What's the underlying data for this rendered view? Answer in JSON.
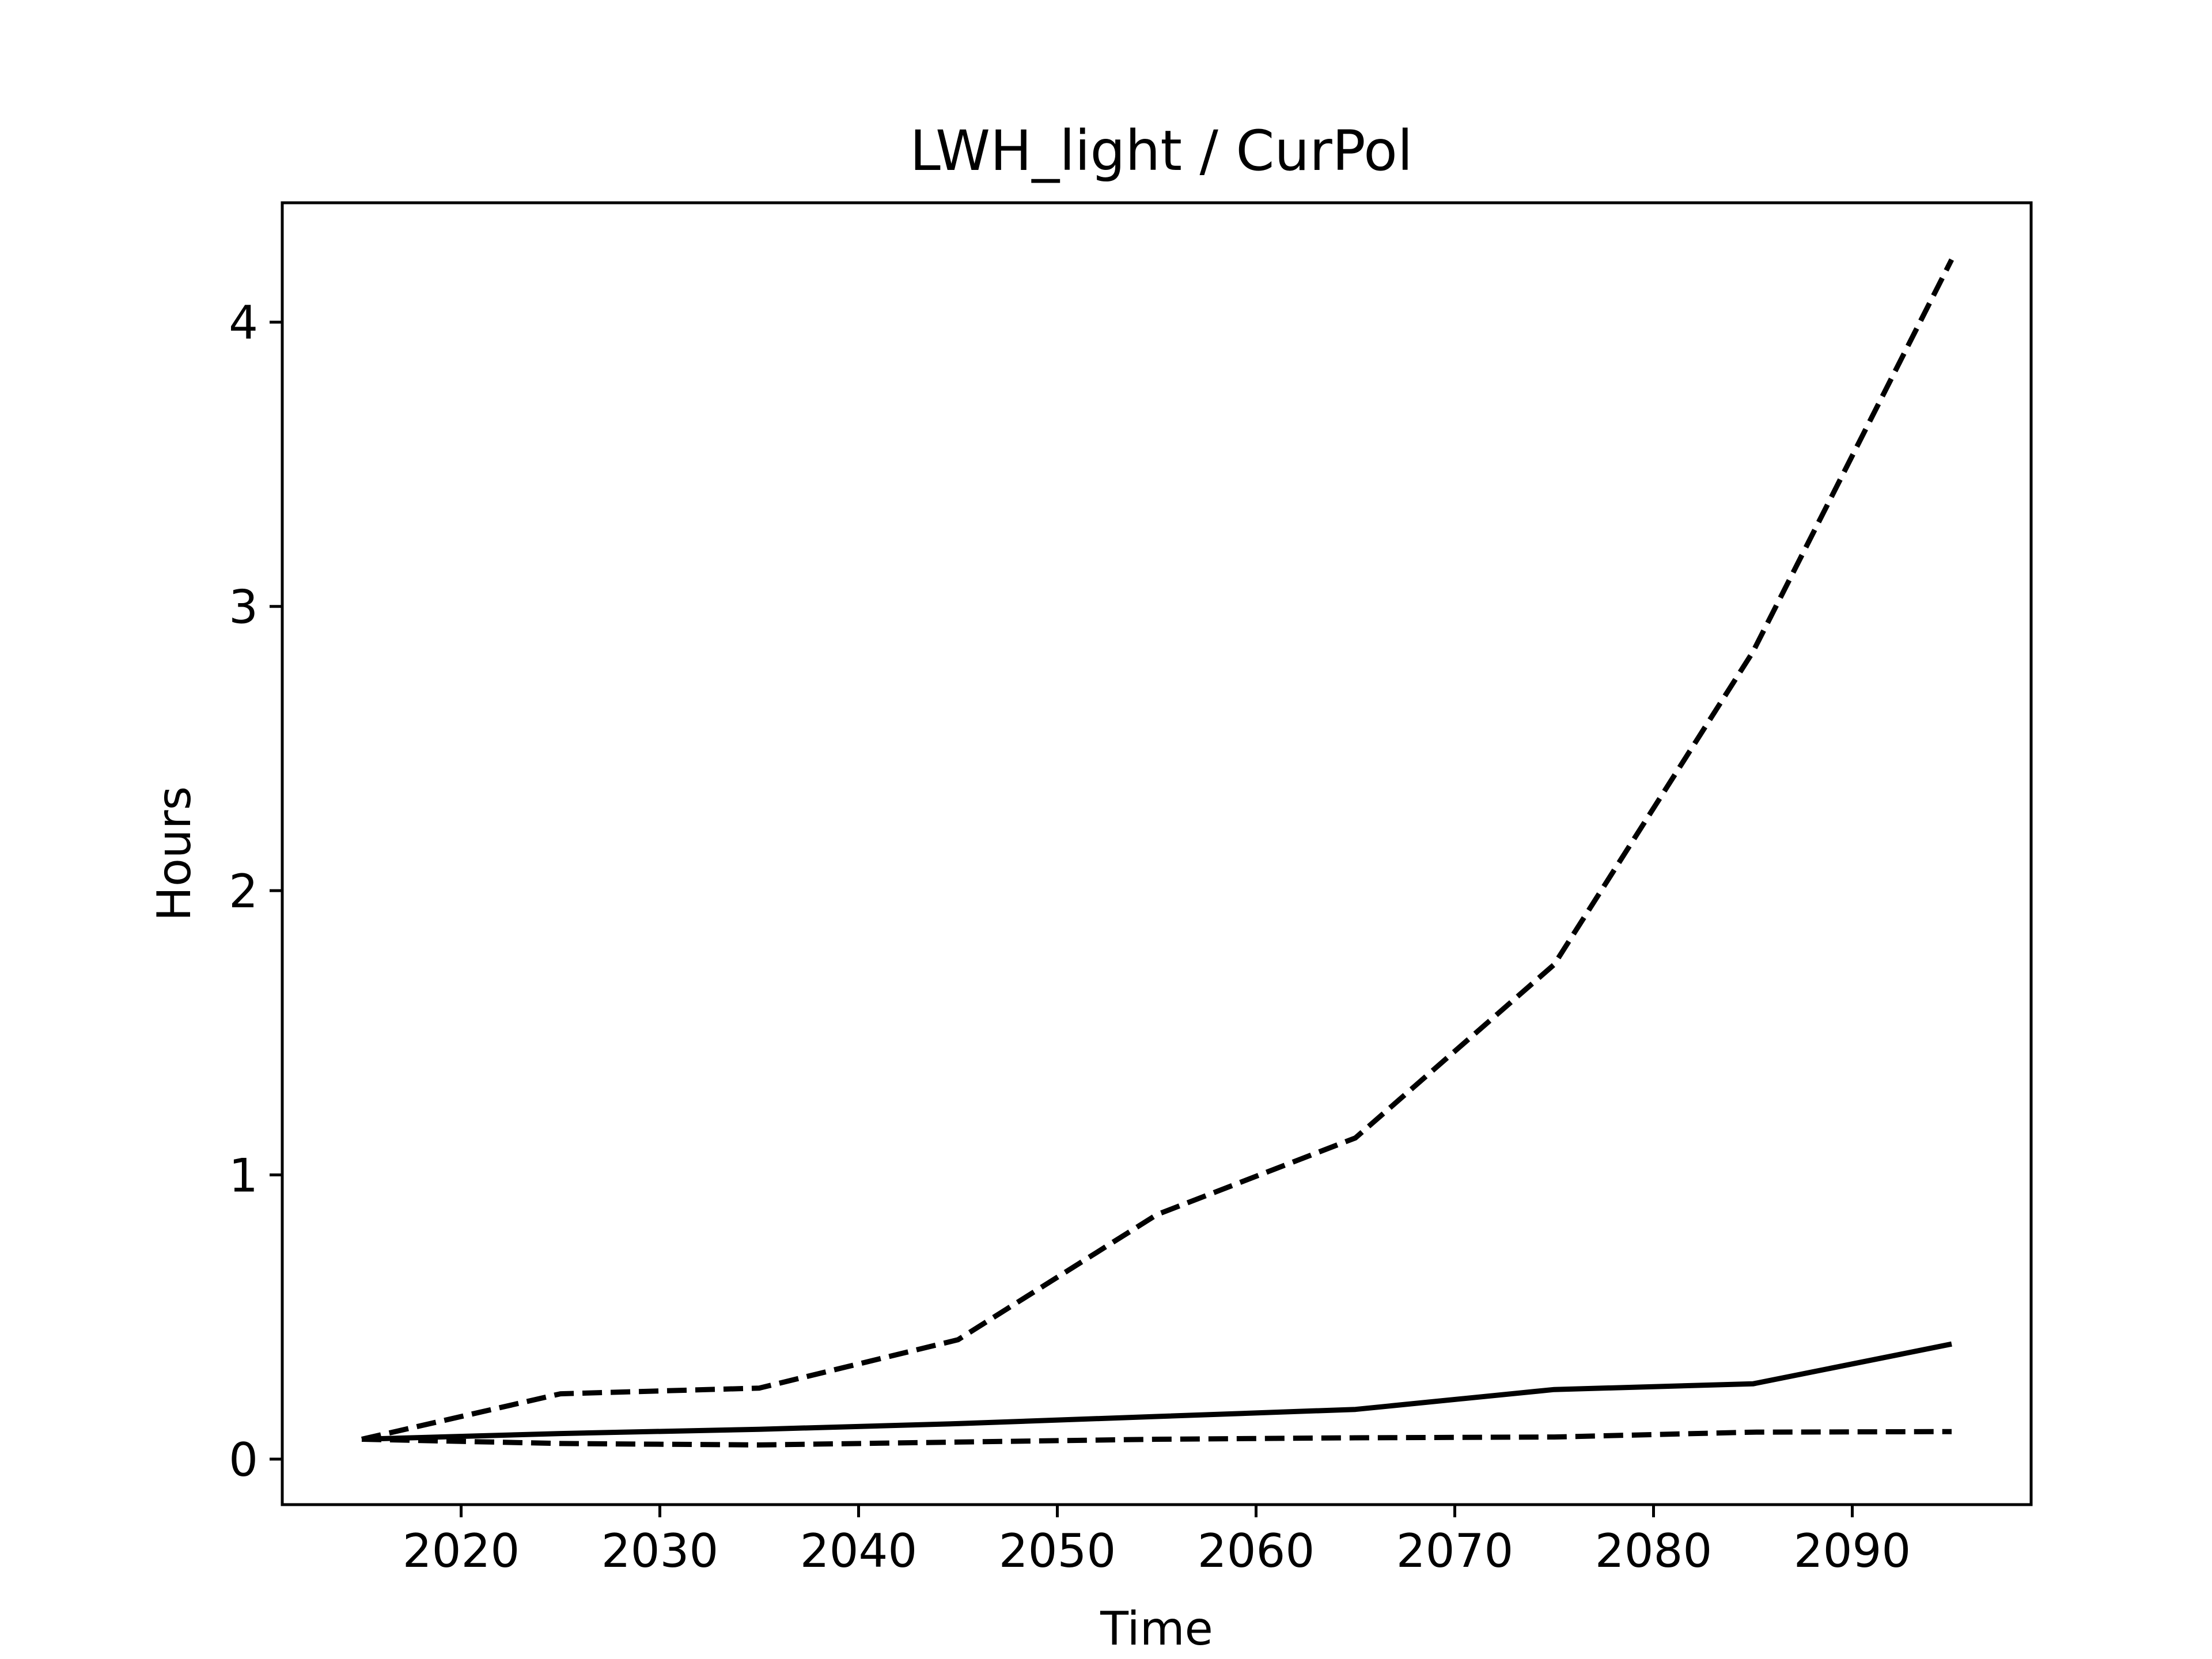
{
  "chart_data": {
    "type": "line",
    "title": "LWH_light / CurPol",
    "xlabel": "Time",
    "ylabel": "Hours",
    "xlim": [
      2011,
      2099
    ],
    "ylim": [
      -0.16,
      4.42
    ],
    "xticks": [
      2020,
      2030,
      2040,
      2050,
      2060,
      2070,
      2080,
      2090
    ],
    "yticks": [
      0,
      1,
      2,
      3,
      4
    ],
    "grid": false,
    "legend": false,
    "colors": {
      "line": "#000000",
      "axes": "#000000",
      "background": "#ffffff"
    },
    "series": [
      {
        "style": "dashed",
        "x": [
          2015,
          2025,
          2035,
          2045,
          2055,
          2065,
          2075,
          2085,
          2095
        ],
        "y": [
          0.07,
          0.23,
          0.25,
          0.42,
          0.86,
          1.13,
          1.74,
          2.84,
          4.22
        ]
      },
      {
        "style": "solid",
        "x": [
          2015,
          2025,
          2035,
          2045,
          2055,
          2065,
          2075,
          2085,
          2095
        ],
        "y": [
          0.07,
          0.09,
          0.105,
          0.125,
          0.15,
          0.175,
          0.245,
          0.265,
          0.405
        ]
      },
      {
        "style": "dashed",
        "x": [
          2015,
          2025,
          2035,
          2045,
          2055,
          2065,
          2075,
          2085,
          2095
        ],
        "y": [
          0.07,
          0.055,
          0.05,
          0.06,
          0.07,
          0.075,
          0.078,
          0.095,
          0.097
        ]
      }
    ]
  }
}
